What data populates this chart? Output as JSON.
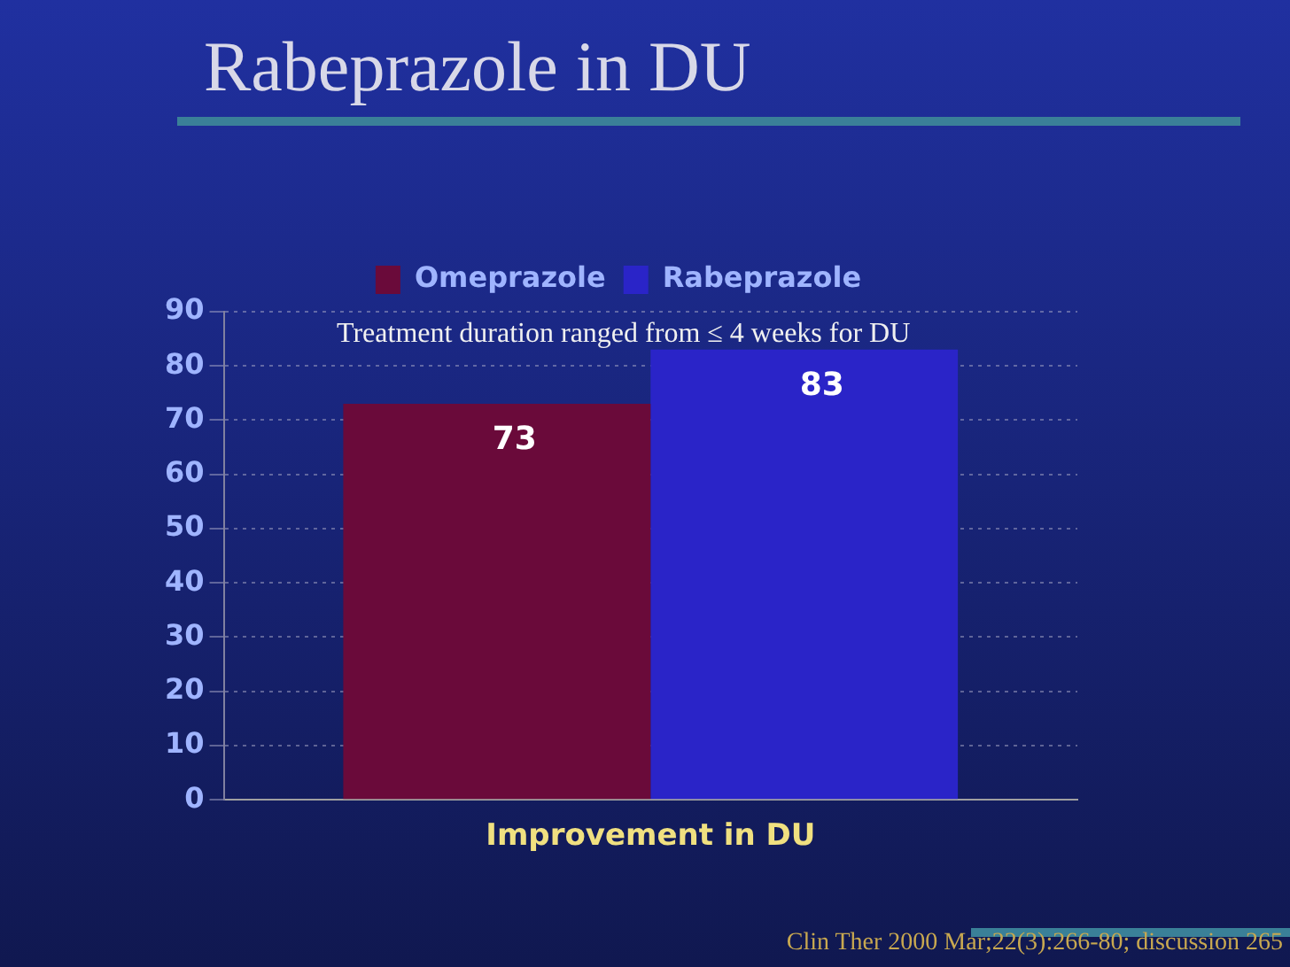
{
  "chart_data": {
    "type": "bar",
    "title": "Rabeprazole in DU",
    "categories": [
      "Improvement in DU"
    ],
    "series": [
      {
        "name": "Omeprazole",
        "color": "#6a0a3a",
        "values": [
          73
        ]
      },
      {
        "name": "Rabeprazole",
        "color": "#2a24c8",
        "values": [
          83
        ]
      }
    ],
    "ylim": [
      0,
      90
    ],
    "yticks": [
      0,
      10,
      20,
      30,
      40,
      50,
      60,
      70,
      80,
      90
    ],
    "grid": "y",
    "legend": "top",
    "data_labels": true,
    "annotations": [
      "Treatment duration ranged from ≤ 4 weeks for DU",
      "Clin Ther 2000 Mar;22(3):266-80; discussion 265"
    ]
  }
}
